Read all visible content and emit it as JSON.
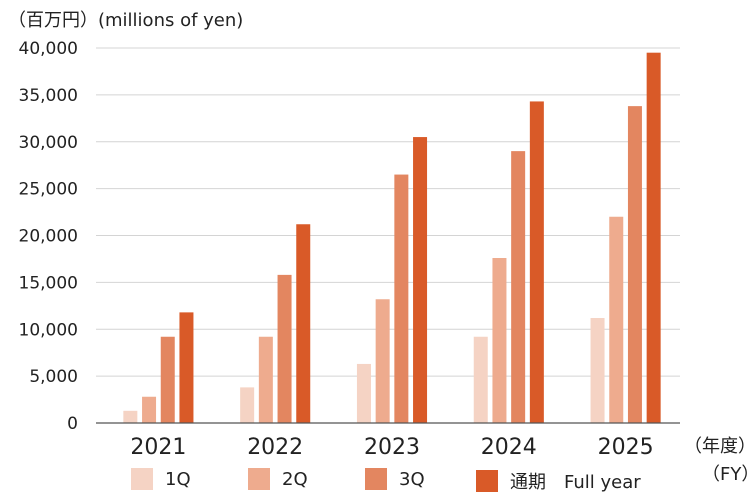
{
  "chart_data": {
    "type": "bar",
    "unit_label": "（百万円）(millions of yen)",
    "fy_label_jp": "（年度）",
    "fy_label_en": "（FY）",
    "categories": [
      "2021",
      "2022",
      "2023",
      "2024",
      "2025"
    ],
    "series": [
      {
        "name": "1Q",
        "color": "#f5d3c4",
        "values": [
          1300,
          3800,
          6300,
          9200,
          11200
        ]
      },
      {
        "name": "2Q",
        "color": "#eeab8e",
        "values": [
          2800,
          9200,
          13200,
          17600,
          22000
        ]
      },
      {
        "name": "3Q",
        "color": "#e38660",
        "values": [
          9200,
          15800,
          26500,
          29000,
          33800
        ]
      },
      {
        "name": "通期　Full year",
        "color": "#d95a28",
        "values": [
          11800,
          21200,
          30500,
          34300,
          39500
        ]
      }
    ],
    "ylim": [
      0,
      40000
    ],
    "yticks": [
      "0",
      "5,000",
      "10,000",
      "15,000",
      "20,000",
      "25,000",
      "30,000",
      "35,000",
      "40,000"
    ],
    "grid": true,
    "legend_position": "bottom"
  }
}
